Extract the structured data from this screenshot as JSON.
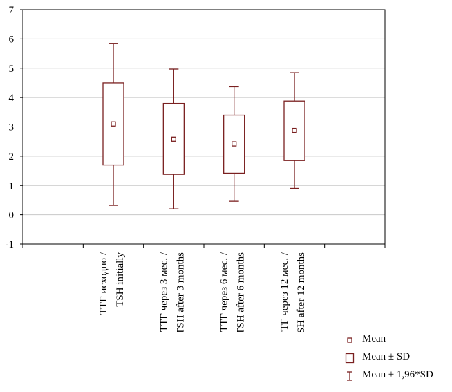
{
  "chart_data": {
    "type": "box",
    "categories": [
      [
        "ТТГ исходно /",
        "TSH initially"
      ],
      [
        "ТТГ через 3 мес. /",
        "TSH after 3 months"
      ],
      [
        "ТТГ через 6 мес. /",
        "TSH after 6 months"
      ],
      [
        "ТТГ через 12 мес. /",
        "TSH after 12 months"
      ]
    ],
    "series": [
      {
        "mean": 3.1,
        "sd_low": 1.7,
        "sd_high": 4.5,
        "ci_low": 0.32,
        "ci_high": 5.85
      },
      {
        "mean": 2.58,
        "sd_low": 1.38,
        "sd_high": 3.8,
        "ci_low": 0.2,
        "ci_high": 4.97
      },
      {
        "mean": 2.42,
        "sd_low": 1.42,
        "sd_high": 3.4,
        "ci_low": 0.46,
        "ci_high": 4.37
      },
      {
        "mean": 2.88,
        "sd_low": 1.85,
        "sd_high": 3.88,
        "ci_low": 0.9,
        "ci_high": 4.85
      }
    ],
    "ylim": [
      -1,
      7
    ],
    "yticks": [
      "-1",
      "0",
      "1",
      "2",
      "3",
      "4",
      "5",
      "6",
      "7"
    ],
    "grid": "horizontal",
    "colors": {
      "box": "#7a2020",
      "grid": "#c8c8c8"
    },
    "title": "",
    "xlabel": "",
    "ylabel": ""
  },
  "legend": {
    "position": "bottom-right",
    "items": [
      {
        "label": "Mean",
        "icon": "small-square-icon"
      },
      {
        "label": "Mean ± SD",
        "icon": "box-icon"
      },
      {
        "label": "Mean ± 1,96*SD",
        "icon": "whisker-icon"
      }
    ]
  }
}
